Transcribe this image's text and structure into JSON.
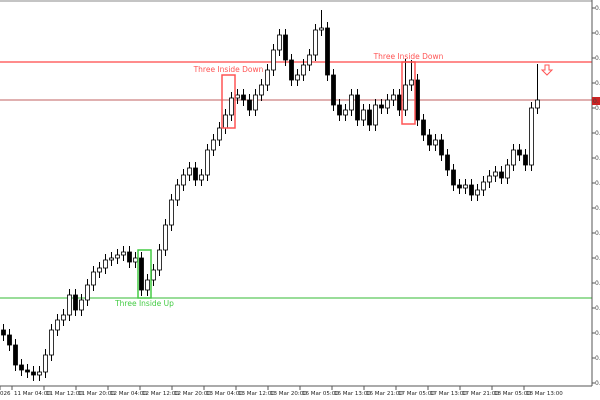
{
  "chart_data": {
    "type": "candlestick",
    "title": "",
    "xlabel": "",
    "ylabel": "",
    "ylim": [
      15,
      400
    ],
    "grid": false,
    "x_tick_labels": [
      "026",
      "11 Mar 04:00",
      "11 Mar 12:00",
      "11 Mar 20:00",
      "12 Mar 04:00",
      "12 Mar 12:00",
      "12 Mar 20:00",
      "13 Mar 04:00",
      "13 Mar 12:00",
      "13 Mar 20:00",
      "16 Mar 05:00",
      "16 Mar 13:00",
      "16 Mar 21:00",
      "17 Mar 05:00",
      "17 Mar 13:00",
      "17 Mar 21:00",
      "18 Mar 05:00",
      "18 Mar 13:00"
    ],
    "y_tick_labels": [
      "0.",
      "0.",
      "0.",
      "0.",
      "0.",
      "0.",
      "0.",
      "0.",
      "0.",
      "0.",
      "0.",
      "0.",
      "0.",
      "0.",
      "0.",
      "0."
    ],
    "open": [
      70,
      65,
      55,
      35,
      30,
      28,
      25,
      28,
      45,
      70,
      80,
      85,
      105,
      90,
      100,
      115,
      128,
      132,
      140,
      142,
      145,
      148,
      138,
      142,
      110,
      120,
      130,
      150,
      175,
      200,
      215,
      225,
      232,
      220,
      225,
      250,
      260,
      272,
      285,
      302,
      305,
      300,
      290,
      305,
      315,
      330,
      350,
      365,
      340,
      320,
      325,
      335,
      345,
      370,
      372,
      325,
      295,
      285,
      290,
      305,
      280,
      290,
      275,
      295,
      292,
      300,
      305,
      290,
      315,
      320,
      280,
      265,
      255,
      260,
      245,
      230,
      215,
      212,
      215,
      205,
      210,
      218,
      224,
      228,
      222,
      235,
      250,
      245,
      235,
      292
    ],
    "high": [
      76,
      71,
      61,
      41,
      36,
      34,
      34,
      51,
      76,
      86,
      91,
      111,
      111,
      106,
      121,
      134,
      138,
      146,
      148,
      151,
      154,
      154,
      148,
      148,
      126,
      136,
      156,
      181,
      206,
      221,
      231,
      238,
      238,
      231,
      256,
      266,
      278,
      291,
      308,
      311,
      311,
      306,
      311,
      321,
      336,
      356,
      371,
      371,
      346,
      331,
      341,
      351,
      376,
      390,
      378,
      331,
      301,
      296,
      311,
      311,
      296,
      296,
      301,
      301,
      306,
      311,
      311,
      341,
      340,
      326,
      286,
      271,
      266,
      266,
      251,
      236,
      221,
      221,
      221,
      216,
      224,
      230,
      234,
      234,
      241,
      256,
      256,
      251,
      298,
      336
    ],
    "low": [
      59,
      49,
      29,
      24,
      22,
      19,
      19,
      22,
      39,
      64,
      74,
      79,
      84,
      84,
      94,
      109,
      122,
      126,
      134,
      136,
      139,
      132,
      132,
      104,
      104,
      114,
      124,
      144,
      169,
      194,
      209,
      219,
      214,
      214,
      219,
      244,
      254,
      266,
      279,
      296,
      294,
      284,
      284,
      299,
      309,
      324,
      344,
      334,
      314,
      314,
      319,
      329,
      339,
      364,
      319,
      289,
      279,
      279,
      284,
      274,
      274,
      269,
      269,
      286,
      286,
      294,
      284,
      284,
      309,
      274,
      259,
      249,
      249,
      239,
      224,
      209,
      206,
      206,
      199,
      199,
      204,
      212,
      218,
      216,
      216,
      229,
      239,
      229,
      229,
      286
    ],
    "close": [
      65,
      55,
      35,
      30,
      28,
      25,
      28,
      45,
      70,
      80,
      85,
      105,
      90,
      100,
      115,
      128,
      132,
      140,
      142,
      145,
      148,
      138,
      142,
      110,
      120,
      130,
      150,
      175,
      200,
      215,
      225,
      232,
      220,
      225,
      250,
      260,
      272,
      285,
      302,
      305,
      300,
      290,
      305,
      315,
      330,
      350,
      365,
      340,
      320,
      325,
      335,
      345,
      370,
      372,
      325,
      295,
      285,
      290,
      305,
      280,
      290,
      275,
      295,
      292,
      300,
      305,
      290,
      315,
      320,
      280,
      265,
      255,
      260,
      245,
      230,
      215,
      212,
      215,
      205,
      210,
      218,
      224,
      228,
      222,
      235,
      250,
      245,
      235,
      292,
      300
    ],
    "horizontal_lines": [
      {
        "price": 338,
        "color": "#ff6666"
      },
      {
        "price": 300,
        "color": "#c06060"
      },
      {
        "price": 102,
        "color": "#33bb33"
      }
    ],
    "patterns": [
      {
        "label": "Three Inside Up",
        "color": "#44cc44",
        "from": 23,
        "to": 24,
        "top": 150,
        "bottom": 102
      },
      {
        "label": "Three Inside Down",
        "color": "#ff5555",
        "from": 37,
        "to": 38,
        "top": 325,
        "bottom": 272
      },
      {
        "label": "Three Inside Down",
        "color": "#ff5555",
        "from": 67,
        "to": 68,
        "top": 338,
        "bottom": 276
      }
    ],
    "signal_arrow": {
      "type": "down-arrow",
      "candle": 90,
      "price": 335,
      "color": "#ff5555"
    },
    "current_price_marker": {
      "price": 299,
      "color": "#cc2222",
      "label": "0."
    },
    "colors": {
      "bull_body": "#ffffff",
      "bear_body": "#000000",
      "wick": "#000000",
      "axis": "#555555"
    }
  }
}
